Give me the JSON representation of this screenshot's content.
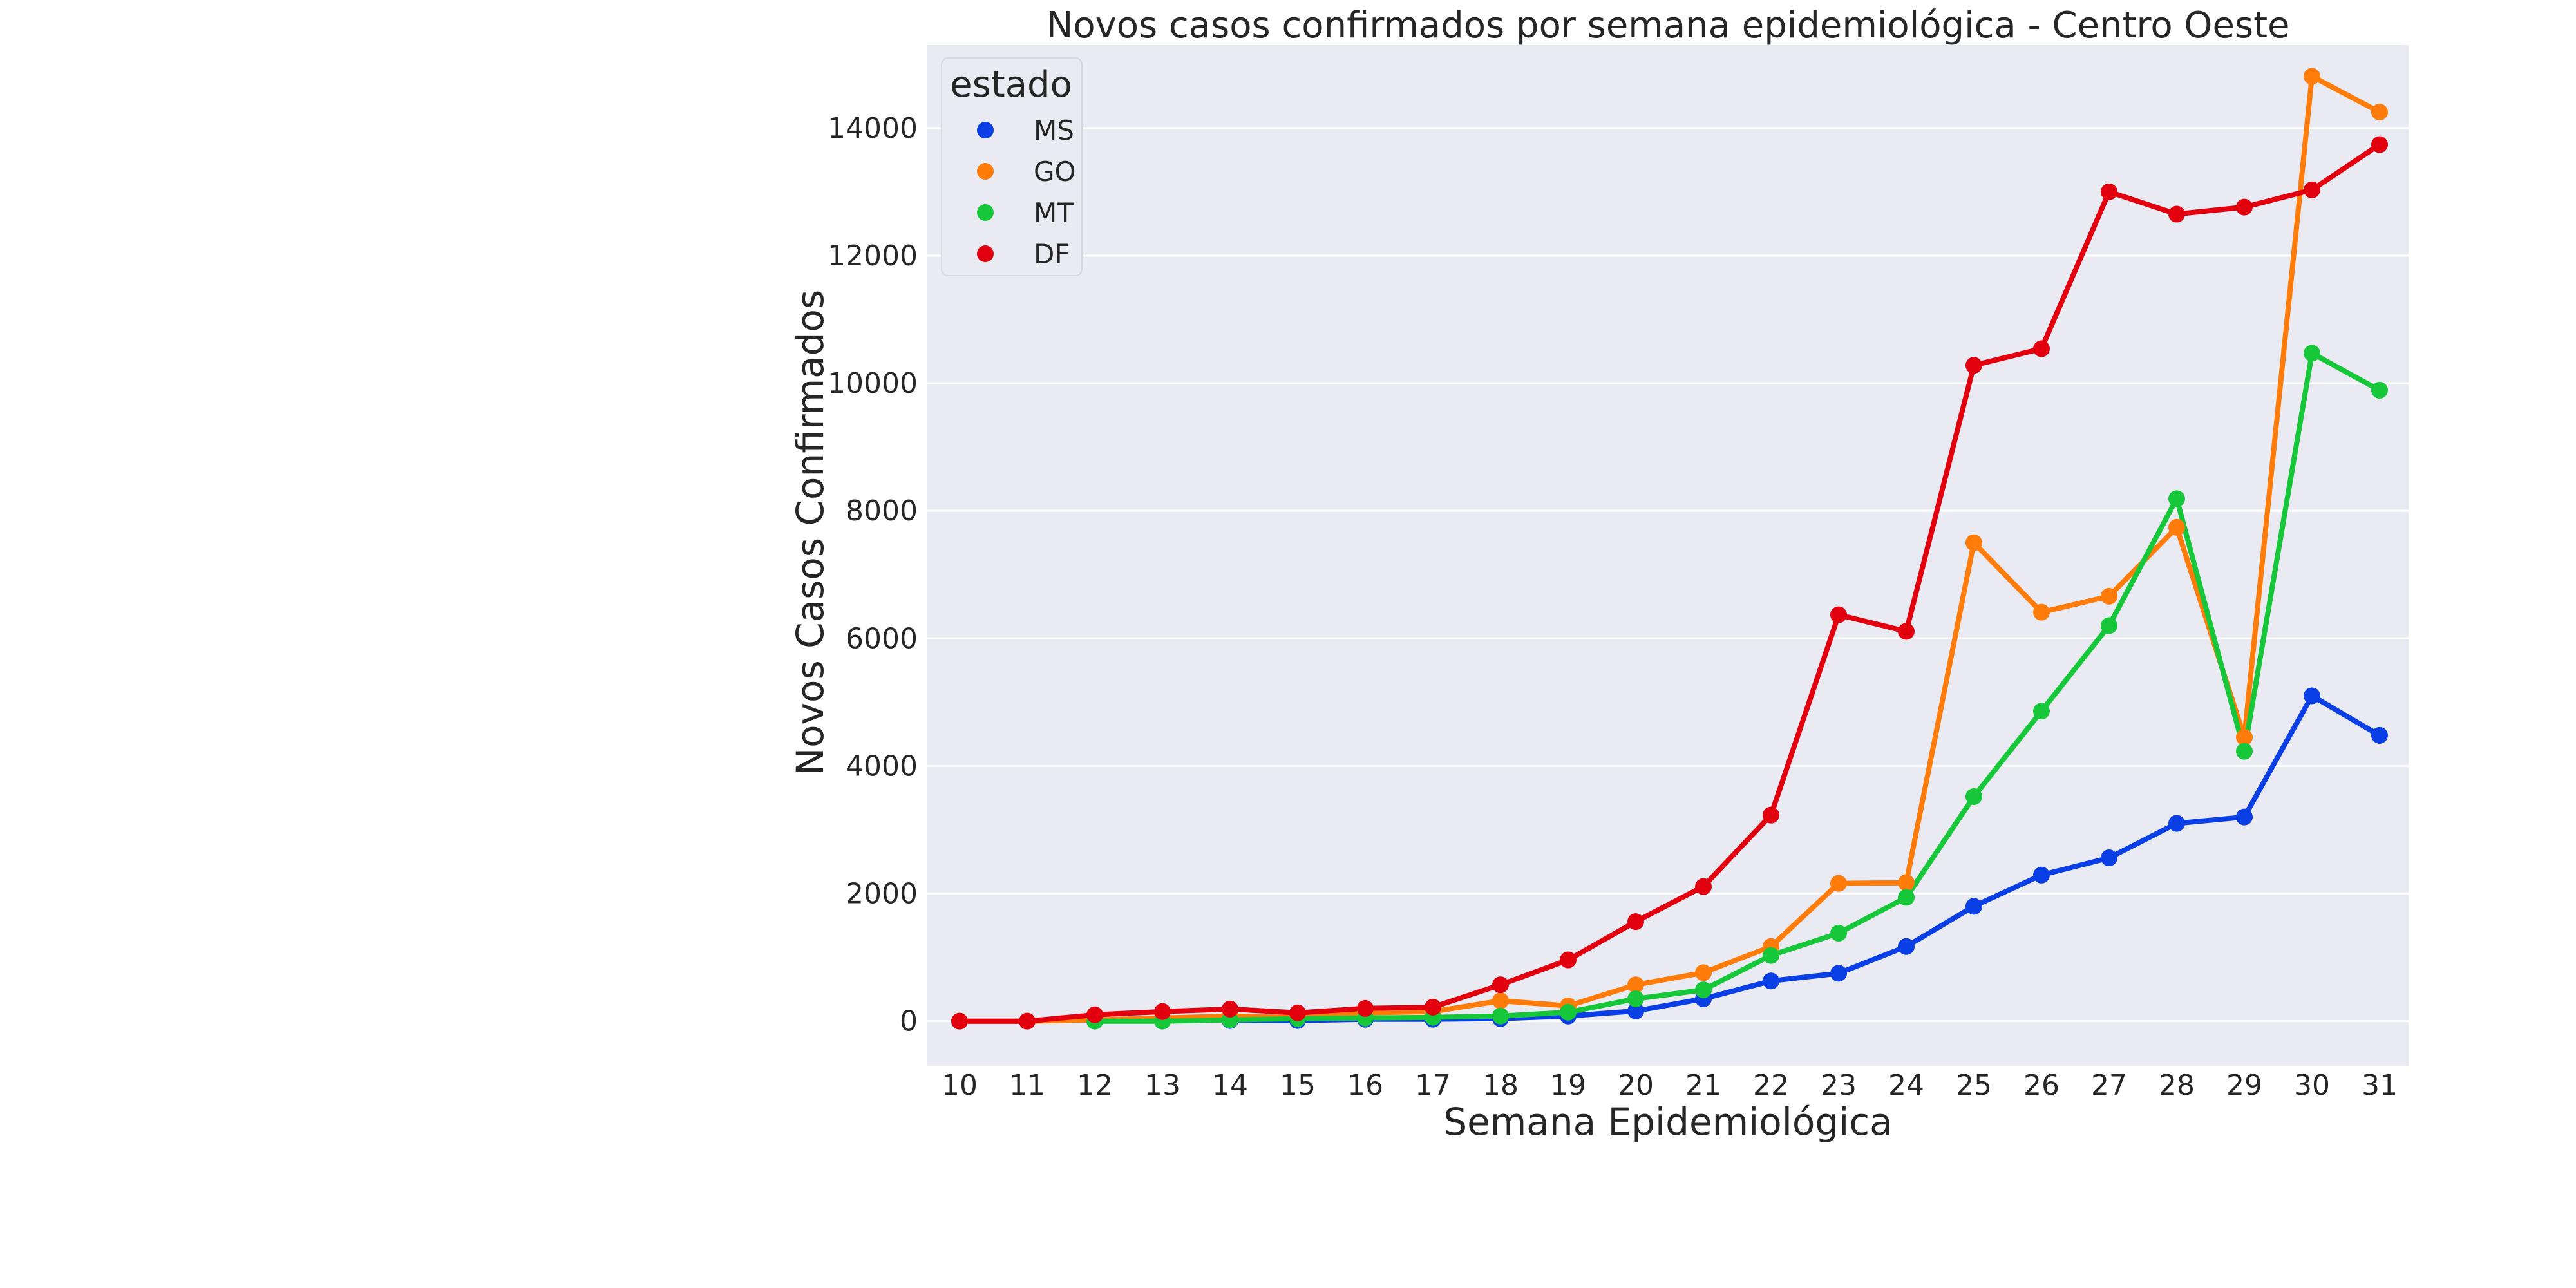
{
  "chart_data": {
    "type": "line",
    "title": "Novos casos confirmados por semana epidemiológica - Centro Oeste",
    "xlabel": "Semana Epidemiológica",
    "ylabel": "Novos Casos Confirmados",
    "categories": [
      "10",
      "11",
      "12",
      "13",
      "14",
      "15",
      "16",
      "17",
      "18",
      "19",
      "20",
      "21",
      "22",
      "23",
      "24",
      "25",
      "26",
      "27",
      "28",
      "29",
      "30",
      "31"
    ],
    "ylim": [
      -700,
      15300
    ],
    "yticks": [
      0,
      2000,
      4000,
      6000,
      8000,
      10000,
      12000,
      14000
    ],
    "ytick_labels": [
      "0",
      "2000",
      "4000",
      "6000",
      "8000",
      "10000",
      "12000",
      "14000"
    ],
    "grid": true,
    "legend": {
      "title": "estado",
      "placement": "top-left"
    },
    "series": [
      {
        "name": "MS",
        "color": "#0a3fe6",
        "values": [
          null,
          null,
          null,
          null,
          10,
          10,
          30,
          30,
          40,
          80,
          160,
          350,
          630,
          750,
          1170,
          1800,
          2290,
          2560,
          3100,
          3200,
          5100,
          4480
        ]
      },
      {
        "name": "GO",
        "color": "#ff7c0a",
        "values": [
          0,
          0,
          20,
          50,
          80,
          60,
          130,
          150,
          320,
          240,
          570,
          760,
          1170,
          2160,
          2170,
          7500,
          6410,
          6660,
          7740,
          4450,
          14810,
          14250
        ]
      },
      {
        "name": "MT",
        "color": "#17c73a",
        "values": [
          null,
          null,
          0,
          0,
          20,
          40,
          50,
          60,
          80,
          140,
          350,
          490,
          1030,
          1380,
          1940,
          3520,
          4860,
          6200,
          8190,
          4230,
          10470,
          9890
        ]
      },
      {
        "name": "DF",
        "color": "#e3000e",
        "values": [
          0,
          0,
          100,
          150,
          190,
          130,
          200,
          220,
          570,
          960,
          1560,
          2110,
          3230,
          6370,
          6110,
          10280,
          10540,
          13000,
          12650,
          12760,
          13030,
          13740
        ]
      }
    ]
  }
}
